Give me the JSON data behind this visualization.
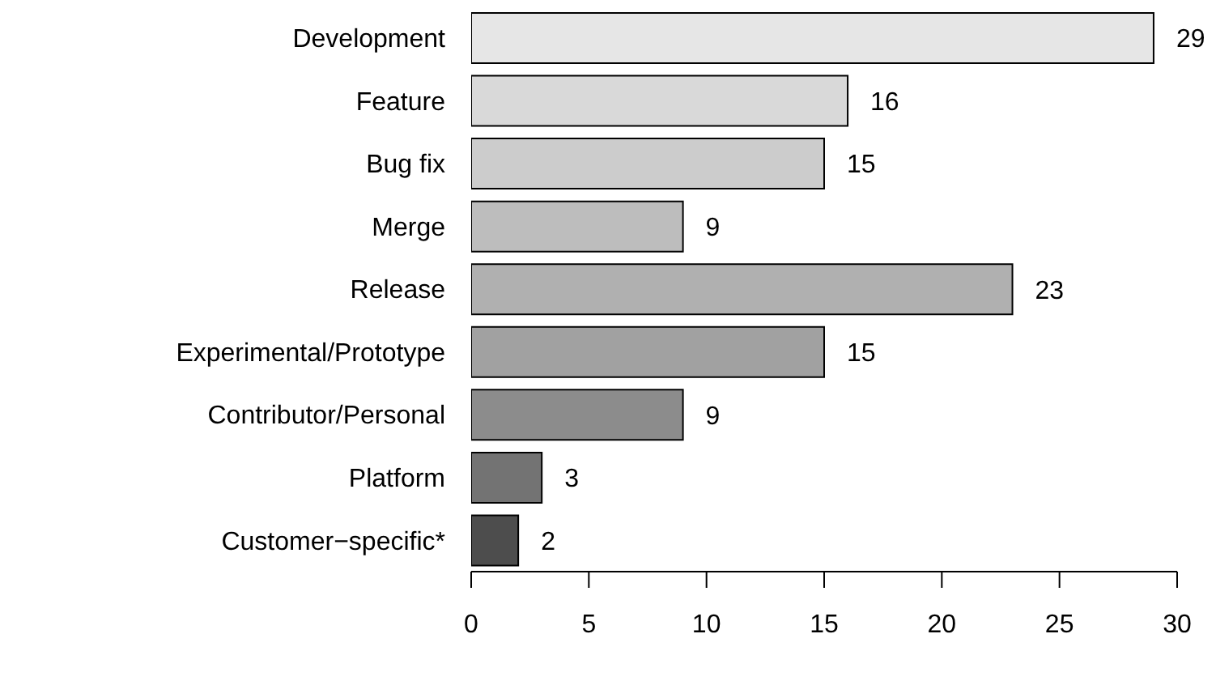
{
  "chart_data": {
    "type": "bar",
    "orientation": "horizontal",
    "categories": [
      "Development",
      "Feature",
      "Bug fix",
      "Merge",
      "Release",
      "Experimental/Prototype",
      "Contributor/Personal",
      "Platform",
      "Customer−specific*"
    ],
    "values": [
      29,
      16,
      15,
      9,
      23,
      15,
      9,
      3,
      2
    ],
    "colors": [
      "#e6e6e6",
      "#d9d9d9",
      "#cccccc",
      "#bdbdbd",
      "#b0b0b0",
      "#a1a1a1",
      "#8c8c8c",
      "#737373",
      "#4d4d4d"
    ],
    "xlim": [
      0,
      30
    ],
    "xticks": [
      0,
      5,
      10,
      15,
      20,
      25,
      30
    ],
    "data_labels": true,
    "grid": false
  }
}
